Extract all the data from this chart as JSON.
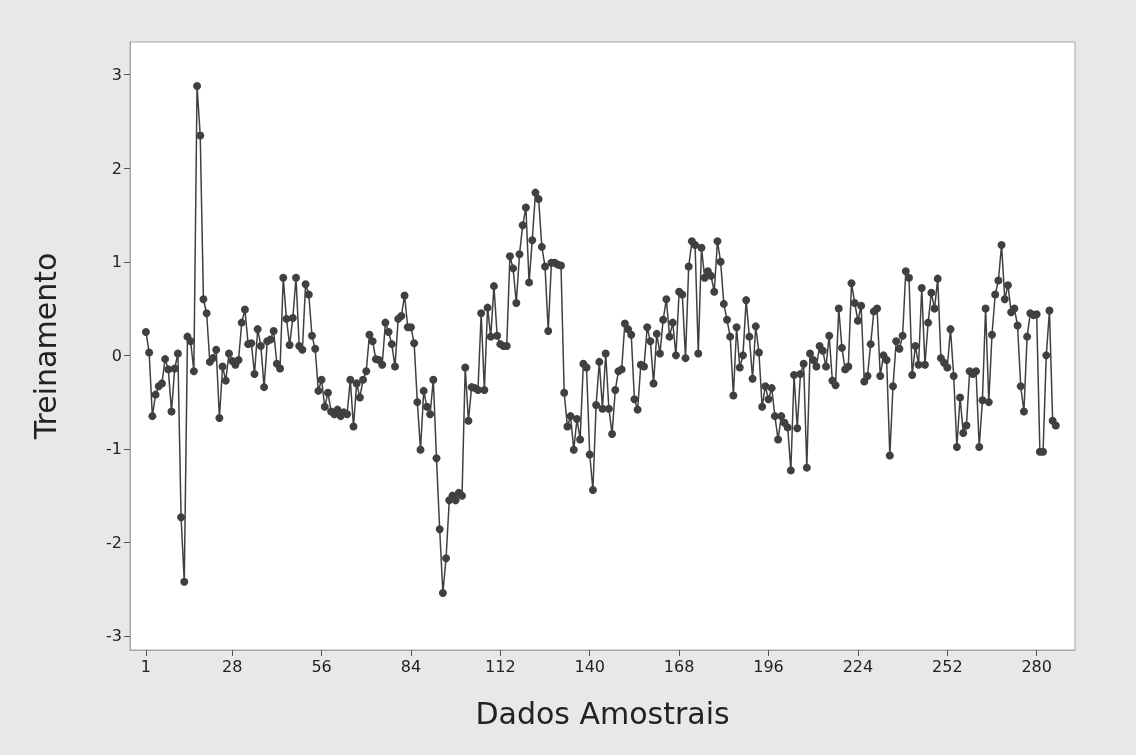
{
  "chart_data": {
    "type": "line",
    "xlabel": "Dados Amostrais",
    "ylabel": "Treinamento",
    "marker": "circle",
    "line_style": "solid",
    "grid": false,
    "xlim": [
      -4,
      292
    ],
    "xticks": [
      1,
      28,
      56,
      84,
      112,
      140,
      168,
      196,
      224,
      252,
      280
    ],
    "ylim": [
      -3.15,
      3.35
    ],
    "yticks": [
      -3,
      -2,
      -1,
      0,
      1,
      2,
      3
    ],
    "x": [
      1,
      2,
      3,
      4,
      5,
      6,
      7,
      8,
      9,
      10,
      11,
      12,
      13,
      14,
      15,
      16,
      17,
      18,
      19,
      20,
      21,
      22,
      23,
      24,
      25,
      26,
      27,
      28,
      29,
      30,
      31,
      32,
      33,
      34,
      35,
      36,
      37,
      38,
      39,
      40,
      41,
      42,
      43,
      44,
      45,
      46,
      47,
      48,
      49,
      50,
      51,
      52,
      53,
      54,
      55,
      56,
      57,
      58,
      59,
      60,
      61,
      62,
      63,
      64,
      65,
      66,
      67,
      68,
      69,
      70,
      71,
      72,
      73,
      74,
      75,
      76,
      77,
      78,
      79,
      80,
      81,
      82,
      83,
      84,
      85,
      86,
      87,
      88,
      89,
      90,
      91,
      92,
      93,
      94,
      95,
      96,
      97,
      98,
      99,
      100,
      101,
      102,
      103,
      104,
      105,
      106,
      107,
      108,
      109,
      110,
      111,
      112,
      113,
      114,
      115,
      116,
      117,
      118,
      119,
      120,
      121,
      122,
      123,
      124,
      125,
      126,
      127,
      128,
      129,
      130,
      131,
      132,
      133,
      134,
      135,
      136,
      137,
      138,
      139,
      140,
      141,
      142,
      143,
      144,
      145,
      146,
      147,
      148,
      149,
      150,
      151,
      152,
      153,
      154,
      155,
      156,
      157,
      158,
      159,
      160,
      161,
      162,
      163,
      164,
      165,
      166,
      167,
      168,
      169,
      170,
      171,
      172,
      173,
      174,
      175,
      176,
      177,
      178,
      179,
      180,
      181,
      182,
      183,
      184,
      185,
      186,
      187,
      188,
      189,
      190,
      191,
      192,
      193,
      194,
      195,
      196,
      197,
      198,
      199,
      200,
      201,
      202,
      203,
      204,
      205,
      206,
      207,
      208,
      209,
      210,
      211,
      212,
      213,
      214,
      215,
      216,
      217,
      218,
      219,
      220,
      221,
      222,
      223,
      224,
      225,
      226,
      227,
      228,
      229,
      230,
      231,
      232,
      233,
      234,
      235,
      236,
      237,
      238,
      239,
      240,
      241,
      242,
      243,
      244,
      245,
      246,
      247,
      248,
      249,
      250,
      251,
      252,
      253,
      254,
      255,
      256,
      257,
      258,
      259,
      260,
      261,
      262,
      263,
      264,
      265,
      266,
      267,
      268,
      269,
      270,
      271,
      272,
      273,
      274,
      275,
      276,
      277,
      278,
      279,
      280,
      281,
      282,
      283,
      284,
      285,
      286
    ],
    "series": [
      {
        "color": "#404040",
        "values": [
          0.25,
          0.03,
          -0.65,
          -0.42,
          -0.33,
          -0.3,
          -0.04,
          -0.15,
          -0.6,
          -0.14,
          0.02,
          -1.73,
          -2.42,
          0.2,
          0.15,
          -0.17,
          2.88,
          2.35,
          0.6,
          0.45,
          -0.07,
          -0.03,
          0.06,
          -0.67,
          -0.12,
          -0.27,
          0.02,
          -0.06,
          -0.1,
          -0.05,
          0.35,
          0.49,
          0.12,
          0.13,
          -0.2,
          0.28,
          0.1,
          -0.34,
          0.15,
          0.17,
          0.26,
          -0.09,
          -0.14,
          0.83,
          0.39,
          0.11,
          0.4,
          0.83,
          0.1,
          0.06,
          0.76,
          0.65,
          0.21,
          0.07,
          -0.38,
          -0.26,
          -0.55,
          -0.4,
          -0.6,
          -0.63,
          -0.58,
          -0.65,
          -0.61,
          -0.63,
          -0.26,
          -0.76,
          -0.3,
          -0.45,
          -0.26,
          -0.17,
          0.22,
          0.15,
          -0.04,
          -0.05,
          -0.1,
          0.35,
          0.25,
          0.12,
          -0.12,
          0.39,
          0.42,
          0.64,
          0.3,
          0.3,
          0.13,
          -0.5,
          -1.01,
          -0.38,
          -0.55,
          -0.63,
          -0.26,
          -1.1,
          -1.86,
          -2.54,
          -2.17,
          -1.55,
          -1.5,
          -1.55,
          -1.47,
          -1.5,
          -0.13,
          -0.7,
          -0.34,
          -0.35,
          -0.37,
          0.45,
          -0.37,
          0.51,
          0.2,
          0.74,
          0.21,
          0.12,
          0.1,
          0.1,
          1.06,
          0.93,
          0.56,
          1.08,
          1.39,
          1.58,
          0.78,
          1.23,
          1.74,
          1.67,
          1.16,
          0.95,
          0.26,
          0.99,
          0.99,
          0.97,
          0.96,
          -0.4,
          -0.76,
          -0.65,
          -1.01,
          -0.68,
          -0.9,
          -0.09,
          -0.13,
          -1.06,
          -1.44,
          -0.53,
          -0.07,
          -0.57,
          0.02,
          -0.57,
          -0.84,
          -0.37,
          -0.17,
          -0.15,
          0.34,
          0.28,
          0.22,
          -0.47,
          -0.58,
          -0.1,
          -0.12,
          0.3,
          0.15,
          -0.3,
          0.23,
          0.02,
          0.38,
          0.6,
          0.2,
          0.35,
          0.0,
          0.68,
          0.65,
          -0.03,
          0.95,
          1.22,
          1.18,
          0.02,
          1.15,
          0.83,
          0.9,
          0.85,
          0.68,
          1.22,
          1.0,
          0.55,
          0.38,
          0.2,
          -0.43,
          0.3,
          -0.13,
          0.0,
          0.59,
          0.2,
          -0.25,
          0.31,
          0.03,
          -0.55,
          -0.33,
          -0.47,
          -0.35,
          -0.65,
          -0.9,
          -0.65,
          -0.72,
          -0.77,
          -1.23,
          -0.21,
          -0.78,
          -0.2,
          -0.09,
          -1.2,
          0.02,
          -0.05,
          -0.12,
          0.1,
          0.05,
          -0.12,
          0.21,
          -0.27,
          -0.32,
          0.5,
          0.08,
          -0.15,
          -0.12,
          0.77,
          0.56,
          0.37,
          0.53,
          -0.28,
          -0.22,
          0.12,
          0.47,
          0.5,
          -0.22,
          0.0,
          -0.05,
          -1.07,
          -0.33,
          0.15,
          0.07,
          0.21,
          0.9,
          0.83,
          -0.21,
          0.1,
          -0.1,
          0.72,
          -0.1,
          0.35,
          0.67,
          0.5,
          0.82,
          -0.03,
          -0.08,
          -0.13,
          0.28,
          -0.22,
          -0.98,
          -0.45,
          -0.83,
          -0.75,
          -0.17,
          -0.2,
          -0.17,
          -0.98,
          -0.48,
          0.5,
          -0.5,
          0.22,
          0.65,
          0.8,
          1.18,
          0.6,
          0.75,
          0.46,
          0.5,
          0.32,
          -0.33,
          -0.6,
          0.2,
          0.45,
          0.43,
          0.44,
          -1.03,
          -1.03,
          0.0,
          0.48,
          -0.7,
          -0.75
        ]
      }
    ]
  }
}
